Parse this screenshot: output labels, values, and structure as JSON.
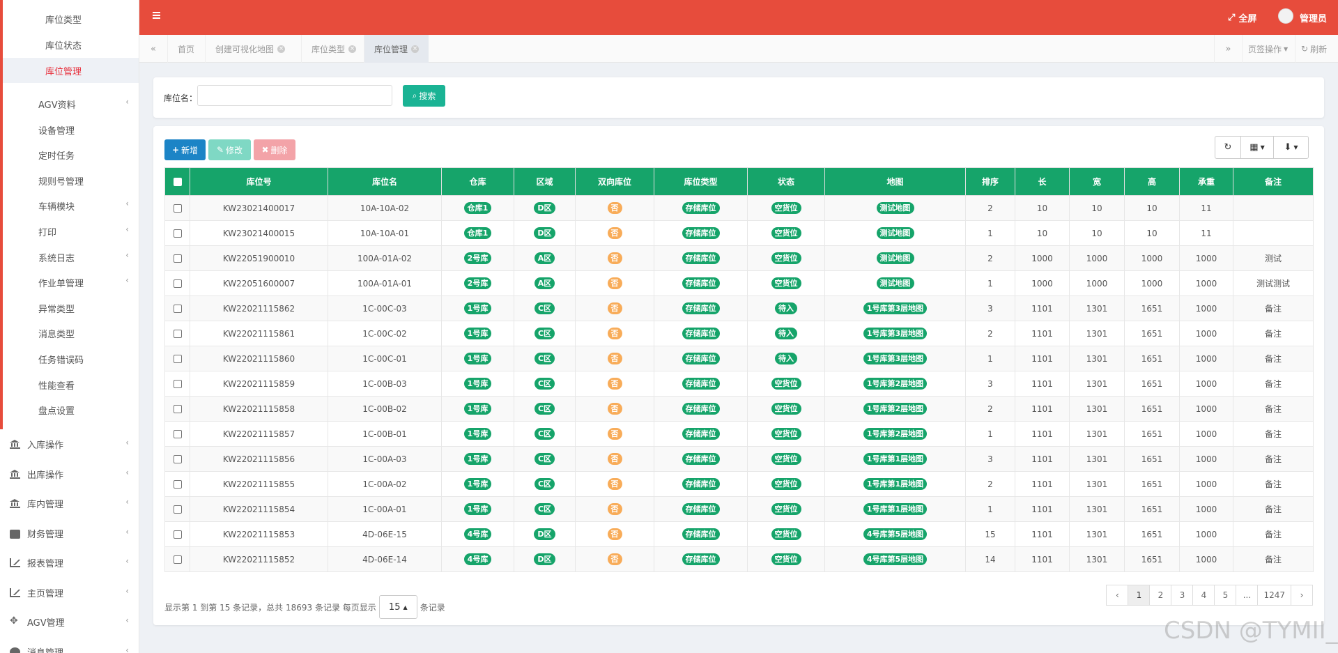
{
  "sidebar": {
    "submenu": [
      {
        "label": "库位类型",
        "active": false
      },
      {
        "label": "库位状态",
        "active": false
      },
      {
        "label": "库位管理",
        "active": true
      }
    ],
    "group": [
      {
        "label": "AGV资料",
        "arrow": true
      },
      {
        "label": "设备管理",
        "arrow": false
      },
      {
        "label": "定时任务",
        "arrow": false
      },
      {
        "label": "规则号管理",
        "arrow": false
      },
      {
        "label": "车辆模块",
        "arrow": true
      },
      {
        "label": "打印",
        "arrow": true
      },
      {
        "label": "系统日志",
        "arrow": true
      },
      {
        "label": "作业单管理",
        "arrow": true
      },
      {
        "label": "异常类型",
        "arrow": false
      },
      {
        "label": "消息类型",
        "arrow": false
      },
      {
        "label": "任务错误码",
        "arrow": false
      },
      {
        "label": "性能查看",
        "arrow": false
      },
      {
        "label": "盘点设置",
        "arrow": false
      }
    ],
    "top": [
      {
        "label": "入库操作",
        "icon": "bank-icon"
      },
      {
        "label": "出库操作",
        "icon": "bank-icon"
      },
      {
        "label": "库内管理",
        "icon": "bank-icon"
      },
      {
        "label": "财务管理",
        "icon": "briefcase-icon"
      },
      {
        "label": "报表管理",
        "icon": "area-chart-icon"
      },
      {
        "label": "主页管理",
        "icon": "area-chart-icon"
      },
      {
        "label": "AGV管理",
        "icon": "move-icon"
      },
      {
        "label": "消息管理",
        "icon": "circle-icon"
      }
    ],
    "chevron": "‹"
  },
  "header": {
    "menu_icon": "hamburger-icon",
    "fullscreen_label": "全屏",
    "user_name": "管理员",
    "color": "#e74c3c"
  },
  "tabs": {
    "prev": "«",
    "next": "»",
    "items": [
      {
        "label": "首页",
        "closable": false,
        "active": false
      },
      {
        "label": "创建可视化地图",
        "closable": true,
        "active": false
      },
      {
        "label": "库位类型",
        "closable": true,
        "active": false
      },
      {
        "label": "库位管理",
        "closable": true,
        "active": true
      }
    ],
    "tab_ops": "页签操作",
    "refresh": "刷新"
  },
  "search": {
    "label": "库位名：",
    "value": "",
    "button": "搜索"
  },
  "toolbar": {
    "add": "新增",
    "edit": "修改",
    "delete": "删除"
  },
  "table": {
    "columns": [
      "库位号",
      "库位名",
      "仓库",
      "区域",
      "双向库位",
      "库位类型",
      "状态",
      "地图",
      "排序",
      "长",
      "宽",
      "高",
      "承重",
      "备注"
    ],
    "rows": [
      [
        "KW23021400017",
        "10A-10A-02",
        "仓库1",
        "D区",
        "否",
        "存储库位",
        "空货位",
        "测试地图",
        "2",
        "10",
        "10",
        "10",
        "11",
        ""
      ],
      [
        "KW23021400015",
        "10A-10A-01",
        "仓库1",
        "D区",
        "否",
        "存储库位",
        "空货位",
        "测试地图",
        "1",
        "10",
        "10",
        "10",
        "11",
        ""
      ],
      [
        "KW22051900010",
        "100A-01A-02",
        "2号库",
        "A区",
        "否",
        "存储库位",
        "空货位",
        "测试地图",
        "2",
        "1000",
        "1000",
        "1000",
        "1000",
        "测试"
      ],
      [
        "KW22051600007",
        "100A-01A-01",
        "2号库",
        "A区",
        "否",
        "存储库位",
        "空货位",
        "测试地图",
        "1",
        "1000",
        "1000",
        "1000",
        "1000",
        "测试测试"
      ],
      [
        "KW22021115862",
        "1C-00C-03",
        "1号库",
        "C区",
        "否",
        "存储库位",
        "待入",
        "1号库第3层地图",
        "3",
        "1101",
        "1301",
        "1651",
        "1000",
        "备注"
      ],
      [
        "KW22021115861",
        "1C-00C-02",
        "1号库",
        "C区",
        "否",
        "存储库位",
        "待入",
        "1号库第3层地图",
        "2",
        "1101",
        "1301",
        "1651",
        "1000",
        "备注"
      ],
      [
        "KW22021115860",
        "1C-00C-01",
        "1号库",
        "C区",
        "否",
        "存储库位",
        "待入",
        "1号库第3层地图",
        "1",
        "1101",
        "1301",
        "1651",
        "1000",
        "备注"
      ],
      [
        "KW22021115859",
        "1C-00B-03",
        "1号库",
        "C区",
        "否",
        "存储库位",
        "空货位",
        "1号库第2层地图",
        "3",
        "1101",
        "1301",
        "1651",
        "1000",
        "备注"
      ],
      [
        "KW22021115858",
        "1C-00B-02",
        "1号库",
        "C区",
        "否",
        "存储库位",
        "空货位",
        "1号库第2层地图",
        "2",
        "1101",
        "1301",
        "1651",
        "1000",
        "备注"
      ],
      [
        "KW22021115857",
        "1C-00B-01",
        "1号库",
        "C区",
        "否",
        "存储库位",
        "空货位",
        "1号库第2层地图",
        "1",
        "1101",
        "1301",
        "1651",
        "1000",
        "备注"
      ],
      [
        "KW22021115856",
        "1C-00A-03",
        "1号库",
        "C区",
        "否",
        "存储库位",
        "空货位",
        "1号库第1层地图",
        "3",
        "1101",
        "1301",
        "1651",
        "1000",
        "备注"
      ],
      [
        "KW22021115855",
        "1C-00A-02",
        "1号库",
        "C区",
        "否",
        "存储库位",
        "空货位",
        "1号库第1层地图",
        "2",
        "1101",
        "1301",
        "1651",
        "1000",
        "备注"
      ],
      [
        "KW22021115854",
        "1C-00A-01",
        "1号库",
        "C区",
        "否",
        "存储库位",
        "空货位",
        "1号库第1层地图",
        "1",
        "1101",
        "1301",
        "1651",
        "1000",
        "备注"
      ],
      [
        "KW22021115853",
        "4D-06E-15",
        "4号库",
        "D区",
        "否",
        "存储库位",
        "空货位",
        "4号库第5层地图",
        "15",
        "1101",
        "1301",
        "1651",
        "1000",
        "备注"
      ],
      [
        "KW22021115852",
        "4D-06E-14",
        "4号库",
        "D区",
        "否",
        "存储库位",
        "空货位",
        "4号库第5层地图",
        "14",
        "1101",
        "1301",
        "1651",
        "1000",
        "备注"
      ]
    ],
    "badge_columns": [
      2,
      3,
      4,
      5,
      6,
      7
    ],
    "orange_column": 4,
    "header_color": "#16a46a"
  },
  "pager": {
    "info": "显示第 1 到第 15 条记录，总共 18693 条记录 每页显示",
    "page_size": "15",
    "suffix": "条记录",
    "pages": [
      "‹",
      "1",
      "2",
      "3",
      "4",
      "5",
      "...",
      "1247",
      "›"
    ],
    "active_page": "1"
  },
  "watermark": "CSDN @TYMII_"
}
